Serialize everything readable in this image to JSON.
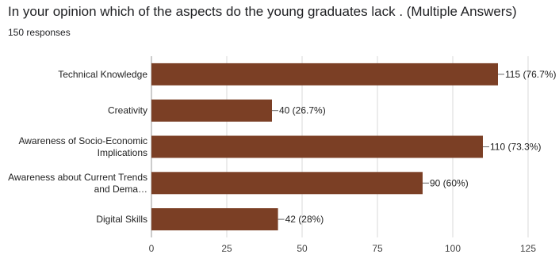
{
  "header": {
    "title": "In your opinion which of the aspects do the young graduates lack . (Multiple Answers)",
    "responses": "150 responses"
  },
  "chart_data": {
    "type": "bar",
    "orientation": "horizontal",
    "categories": [
      [
        "Technical Knowledge"
      ],
      [
        "Creativity"
      ],
      [
        "Awareness of Socio-Economic",
        "Implications"
      ],
      [
        "Awareness about Current Trends",
        "and Dema…"
      ],
      [
        "Digital Skills"
      ]
    ],
    "values": [
      115,
      40,
      110,
      90,
      42
    ],
    "data_labels": [
      "115 (76.7%)",
      "40 (26.7%)",
      "110 (73.3%)",
      "90 (60%)",
      "42 (28%)"
    ],
    "xlim": [
      0,
      125
    ],
    "xticks": [
      0,
      25,
      50,
      75,
      100,
      125
    ],
    "grid": true,
    "bar_color": "#7b3f25",
    "grid_color": "#d9d9d9"
  }
}
